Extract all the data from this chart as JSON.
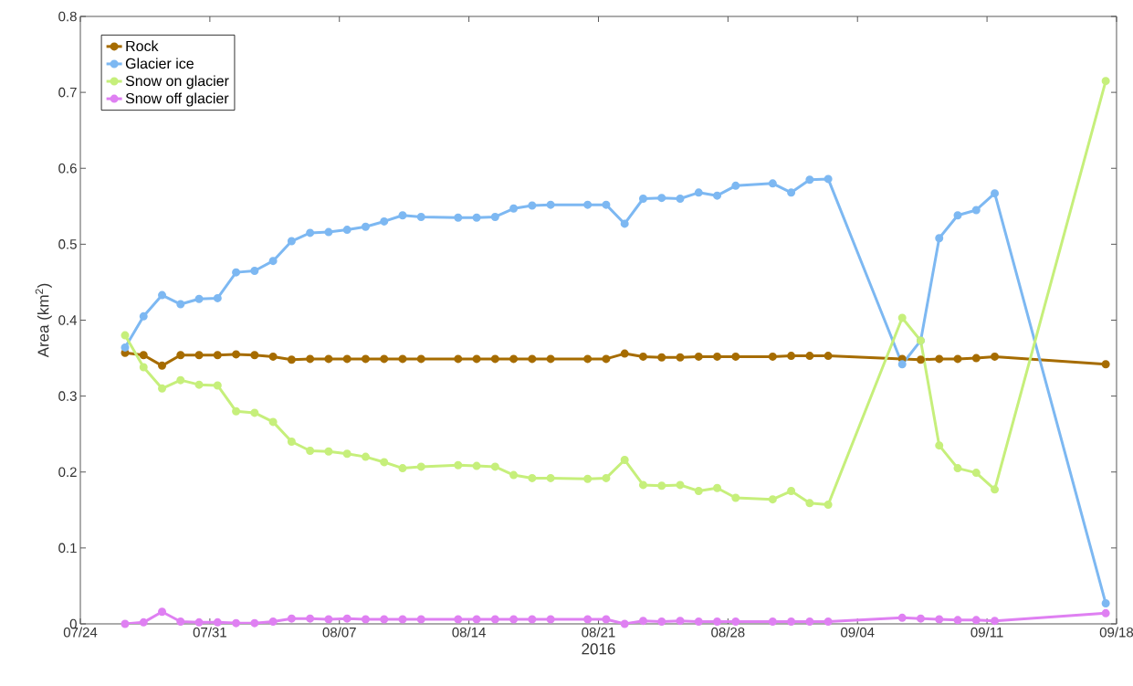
{
  "chart_data": {
    "type": "line",
    "xlabel": "2016",
    "ylabel": "Area (km$^{2}$)",
    "x": [
      "2016-07-26T10:00",
      "2016-07-27T10:00",
      "2016-07-28T10:00",
      "2016-07-29T10:00",
      "2016-07-30T10:00",
      "2016-07-31T10:00",
      "2016-08-01T10:00",
      "2016-08-02T10:00",
      "2016-08-03T10:00",
      "2016-08-04T10:00",
      "2016-08-05T10:00",
      "2016-08-06T10:00",
      "2016-08-07T10:00",
      "2016-08-08T10:00",
      "2016-08-09T10:00",
      "2016-08-10T10:00",
      "2016-08-11T10:00",
      "2016-08-13T10:00",
      "2016-08-14T10:00",
      "2016-08-15T10:00",
      "2016-08-16T10:00",
      "2016-08-17T10:00",
      "2016-08-18T10:00",
      "2016-08-20T10:00",
      "2016-08-21T10:00",
      "2016-08-22T10:00",
      "2016-08-23T10:00",
      "2016-08-24T10:00",
      "2016-08-25T10:00",
      "2016-08-26T10:00",
      "2016-08-27T10:00",
      "2016-08-28T10:00",
      "2016-08-30T10:00",
      "2016-08-31T10:00",
      "2016-09-01T10:00",
      "2016-09-02T10:00",
      "2016-09-06T10:00",
      "2016-09-07T10:00",
      "2016-09-08T10:00",
      "2016-09-09T10:00",
      "2016-09-10T10:00",
      "2016-09-11T10:00",
      "2016-09-17T10:00"
    ],
    "series": [
      {
        "name": "Rock",
        "color": "#a66c00",
        "values": [
          0.357,
          0.354,
          0.34,
          0.354,
          0.354,
          0.354,
          0.355,
          0.354,
          0.352,
          0.348,
          0.349,
          0.349,
          0.349,
          0.349,
          0.349,
          0.349,
          0.349,
          0.349,
          0.349,
          0.349,
          0.349,
          0.349,
          0.349,
          0.349,
          0.349,
          0.356,
          0.352,
          0.351,
          0.351,
          0.352,
          0.352,
          0.352,
          0.352,
          0.353,
          0.353,
          0.353,
          0.349,
          0.348,
          0.349,
          0.349,
          0.35,
          0.352,
          0.342
        ]
      },
      {
        "name": "Glacier ice",
        "color": "#7db8f2",
        "values": [
          0.364,
          0.405,
          0.433,
          0.421,
          0.428,
          0.429,
          0.463,
          0.465,
          0.478,
          0.504,
          0.515,
          0.516,
          0.519,
          0.523,
          0.53,
          0.538,
          0.536,
          0.535,
          0.535,
          0.536,
          0.547,
          0.551,
          0.552,
          0.552,
          0.552,
          0.527,
          0.56,
          0.561,
          0.56,
          0.568,
          0.564,
          0.577,
          0.58,
          0.568,
          0.585,
          0.586,
          0.342,
          0.373,
          0.508,
          0.538,
          0.545,
          0.567,
          0.027
        ]
      },
      {
        "name": "Snow on glacier",
        "color": "#c6ef7b",
        "values": [
          0.38,
          0.338,
          0.31,
          0.321,
          0.315,
          0.314,
          0.28,
          0.278,
          0.266,
          0.24,
          0.228,
          0.227,
          0.224,
          0.22,
          0.213,
          0.205,
          0.207,
          0.209,
          0.208,
          0.207,
          0.196,
          0.192,
          0.192,
          0.191,
          0.192,
          0.216,
          0.183,
          0.182,
          0.183,
          0.175,
          0.179,
          0.166,
          0.164,
          0.175,
          0.159,
          0.157,
          0.403,
          0.373,
          0.235,
          0.205,
          0.199,
          0.177,
          0.715
        ]
      },
      {
        "name": "Snow off glacier",
        "color": "#df80f2",
        "values": [
          0.0,
          0.002,
          0.016,
          0.003,
          0.002,
          0.002,
          0.001,
          0.001,
          0.003,
          0.007,
          0.007,
          0.006,
          0.007,
          0.006,
          0.006,
          0.006,
          0.006,
          0.006,
          0.006,
          0.006,
          0.006,
          0.006,
          0.006,
          0.006,
          0.006,
          0.0,
          0.004,
          0.003,
          0.004,
          0.003,
          0.003,
          0.003,
          0.003,
          0.003,
          0.003,
          0.003,
          0.008,
          0.007,
          0.006,
          0.005,
          0.005,
          0.004,
          0.014
        ]
      }
    ],
    "xlim": [
      "2016-07-24",
      "2016-09-18"
    ],
    "xticks": [
      {
        "value": "2016-07-24",
        "label": "07/24"
      },
      {
        "value": "2016-07-31",
        "label": "07/31"
      },
      {
        "value": "2016-08-07",
        "label": "08/07"
      },
      {
        "value": "2016-08-14",
        "label": "08/14"
      },
      {
        "value": "2016-08-21",
        "label": "08/21"
      },
      {
        "value": "2016-08-28",
        "label": "08/28"
      },
      {
        "value": "2016-09-04",
        "label": "09/04"
      },
      {
        "value": "2016-09-11",
        "label": "09/11"
      },
      {
        "value": "2016-09-18",
        "label": "09/18"
      }
    ],
    "ylim": [
      0,
      0.8
    ],
    "yticks": [
      0,
      0.1,
      0.2,
      0.3,
      0.4,
      0.5,
      0.6,
      0.7,
      0.8
    ],
    "legend": "top left",
    "marker": "circle",
    "line_style": "solid",
    "grid": false
  }
}
